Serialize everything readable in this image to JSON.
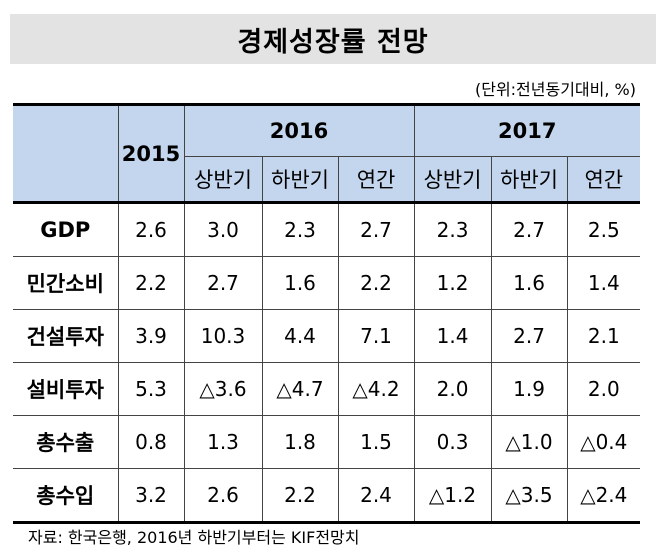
{
  "title": "경제성장률 전망",
  "unit_note": "(단위:전년동기대비, %)",
  "header": {
    "col_2015": "2015",
    "year_2016": "2016",
    "year_2017": "2017",
    "sub": [
      "상반기",
      "하반기",
      "연간",
      "상반기",
      "하반기",
      "연간"
    ]
  },
  "rows": [
    {
      "label": "GDP",
      "values": [
        "2.6",
        "3.0",
        "2.3",
        "2.7",
        "2.3",
        "2.7",
        "2.5"
      ]
    },
    {
      "label": "민간소비",
      "values": [
        "2.2",
        "2.7",
        "1.6",
        "2.2",
        "1.2",
        "1.6",
        "1.4"
      ]
    },
    {
      "label": "건설투자",
      "values": [
        "3.9",
        "10.3",
        "4.4",
        "7.1",
        "1.4",
        "2.7",
        "2.1"
      ]
    },
    {
      "label": "설비투자",
      "values": [
        "5.3",
        "△3.6",
        "△4.7",
        "△4.2",
        "2.0",
        "1.9",
        "2.0"
      ]
    },
    {
      "label": "총수출",
      "values": [
        "0.8",
        "1.3",
        "1.8",
        "1.5",
        "0.3",
        "△1.0",
        "△0.4"
      ]
    },
    {
      "label": "총수입",
      "values": [
        "3.2",
        "2.6",
        "2.2",
        "2.4",
        "△1.2",
        "△3.5",
        "△2.4"
      ]
    }
  ],
  "source": "자료: 한국은행, 2016년 하반기부터는 KIF전망치"
}
